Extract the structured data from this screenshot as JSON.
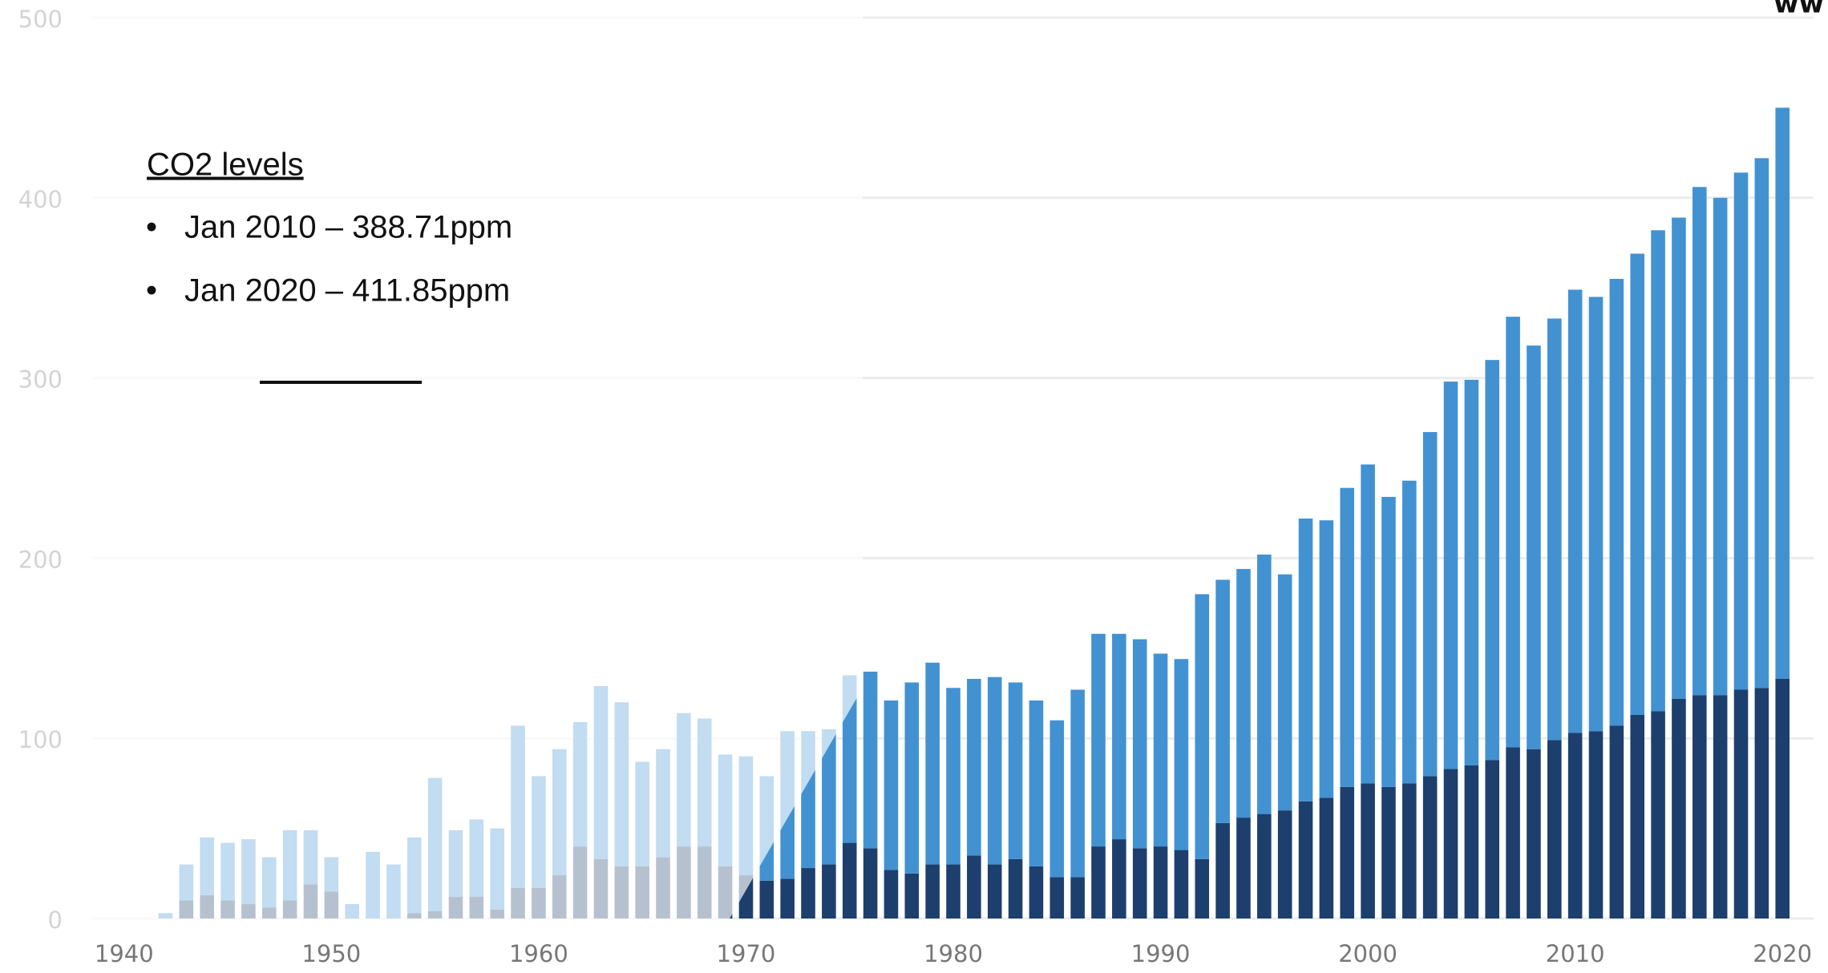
{
  "chart_data": {
    "type": "bar",
    "stacked": true,
    "x": [
      1942,
      1943,
      1944,
      1945,
      1946,
      1947,
      1948,
      1949,
      1950,
      1951,
      1952,
      1953,
      1954,
      1955,
      1956,
      1957,
      1958,
      1959,
      1960,
      1961,
      1962,
      1963,
      1964,
      1965,
      1966,
      1967,
      1968,
      1969,
      1970,
      1971,
      1972,
      1973,
      1974,
      1975,
      1976,
      1977,
      1978,
      1979,
      1980,
      1981,
      1982,
      1983,
      1984,
      1985,
      1986,
      1987,
      1988,
      1989,
      1990,
      1991,
      1992,
      1993,
      1994,
      1995,
      1996,
      1997,
      1998,
      1999,
      2000,
      2001,
      2002,
      2003,
      2004,
      2005,
      2006,
      2007,
      2008,
      2009,
      2010,
      2011,
      2012,
      2013,
      2014,
      2015,
      2016,
      2017,
      2018,
      2019,
      2020
    ],
    "series": [
      {
        "color": "#1d3f6e",
        "values": [
          0,
          10,
          13,
          10,
          8,
          6,
          10,
          19,
          15,
          0,
          0,
          0,
          3,
          4,
          12,
          12,
          5,
          17,
          17,
          24,
          40,
          33,
          29,
          29,
          34,
          40,
          40,
          29,
          24,
          21,
          22,
          28,
          30,
          42,
          39,
          27,
          25,
          30,
          30,
          35,
          30,
          33,
          29,
          23,
          23,
          40,
          44,
          39,
          40,
          38,
          33,
          53,
          56,
          58,
          60,
          65,
          67,
          73,
          75,
          73,
          75,
          79,
          83,
          85,
          88,
          95,
          94,
          99,
          103,
          104,
          107,
          113,
          115,
          122,
          124,
          124,
          127,
          128,
          133
        ]
      },
      {
        "color": "#4292d2",
        "values": [
          3,
          20,
          32,
          32,
          36,
          28,
          39,
          30,
          19,
          8,
          37,
          30,
          42,
          74,
          37,
          43,
          45,
          90,
          62,
          70,
          69,
          96,
          91,
          58,
          60,
          74,
          71,
          62,
          66,
          58,
          82,
          76,
          75,
          93,
          98,
          94,
          106,
          112,
          98,
          98,
          104,
          98,
          92,
          87,
          104,
          118,
          114,
          116,
          107,
          106,
          147,
          135,
          138,
          144,
          131,
          157,
          154,
          166,
          177,
          161,
          168,
          191,
          215,
          214,
          222,
          239,
          224,
          234,
          246,
          241,
          248,
          256,
          267,
          267,
          282,
          276,
          287,
          294,
          317
        ]
      }
    ],
    "xlim": [
      1938.5,
      2021.5
    ],
    "xticks": [
      1940,
      1950,
      1960,
      1970,
      1980,
      1990,
      2000,
      2010,
      2020
    ],
    "ylim": [
      0,
      500
    ],
    "yticks": [
      0,
      100,
      200,
      300,
      400,
      500
    ],
    "grid": true,
    "annotation": {
      "title": "CO2 levels",
      "items": [
        "Jan 2010 – 388.71ppm",
        "Jan 2020 – 411.85ppm"
      ]
    },
    "watermark": "ww"
  }
}
